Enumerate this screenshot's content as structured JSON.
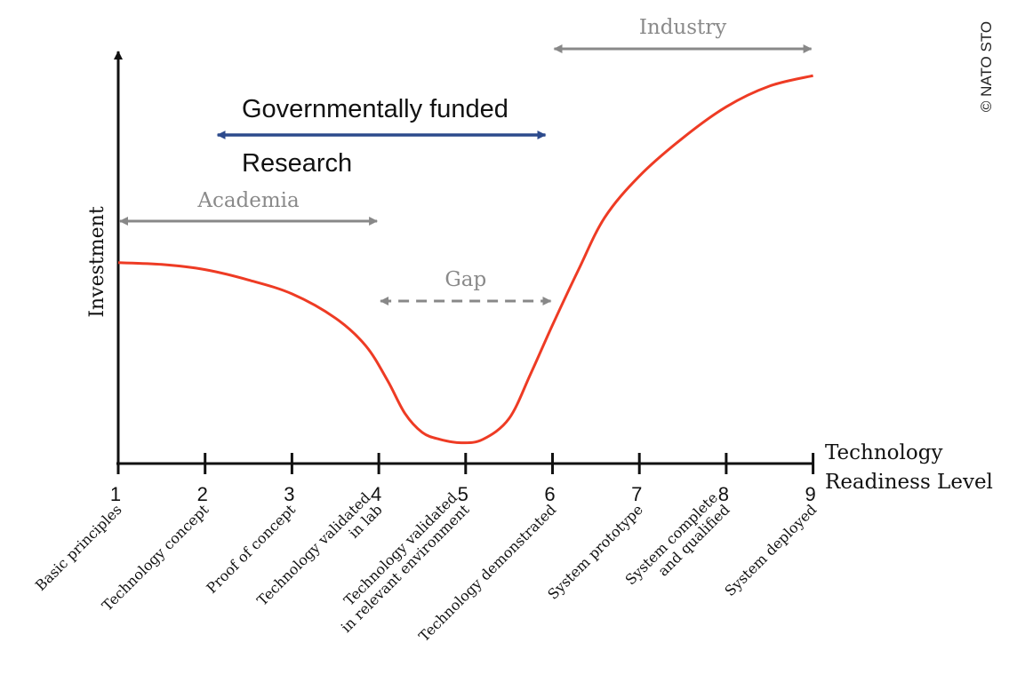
{
  "copyright": "© NATO STO",
  "chart_data": {
    "type": "line",
    "xlabel": [
      "Technology",
      "Readiness Level"
    ],
    "ylabel": "Investment",
    "x_ticks": [
      "1",
      "2",
      "3",
      "4",
      "5",
      "6",
      "7",
      "8",
      "9"
    ],
    "x_tick_descriptions": [
      [
        "Basic principles"
      ],
      [
        "Technology concept"
      ],
      [
        "Proof of concept"
      ],
      [
        "Technology validated",
        "in lab"
      ],
      [
        "Technology validated",
        "in relevant environment"
      ],
      [
        "Technology demonstrated"
      ],
      [
        "System prototype"
      ],
      [
        "System complete",
        "and qualified"
      ],
      [
        "System deployed"
      ]
    ],
    "series": [
      {
        "color": "#ee3b24",
        "points": [
          [
            1,
            0.58
          ],
          [
            1.5,
            0.575
          ],
          [
            2,
            0.56
          ],
          [
            2.5,
            0.53
          ],
          [
            3,
            0.49
          ],
          [
            3.5,
            0.42
          ],
          [
            3.85,
            0.34
          ],
          [
            4.1,
            0.24
          ],
          [
            4.3,
            0.145
          ],
          [
            4.5,
            0.09
          ],
          [
            4.7,
            0.07
          ],
          [
            4.95,
            0.06
          ],
          [
            5.2,
            0.07
          ],
          [
            5.5,
            0.13
          ],
          [
            5.75,
            0.26
          ],
          [
            6,
            0.4
          ],
          [
            6.3,
            0.56
          ],
          [
            6.6,
            0.71
          ],
          [
            7,
            0.83
          ],
          [
            7.5,
            0.94
          ],
          [
            8,
            1.03
          ],
          [
            8.5,
            1.09
          ],
          [
            9,
            1.12
          ]
        ]
      }
    ],
    "ranges": [
      {
        "label": "Industry",
        "from": 6,
        "to": 9,
        "style": "solid",
        "color": "#888888"
      },
      {
        "label": "Academia",
        "from": 1,
        "to": 4,
        "style": "solid",
        "color": "#888888"
      },
      {
        "label": "Gap",
        "from": 4,
        "to": 6,
        "style": "dashed",
        "color": "#888888"
      },
      {
        "label_top": "Governmentally funded",
        "label_bottom": "Research",
        "from": 2,
        "to": 6,
        "style": "solid",
        "color": "#2c4a8c"
      }
    ],
    "grid": false
  }
}
